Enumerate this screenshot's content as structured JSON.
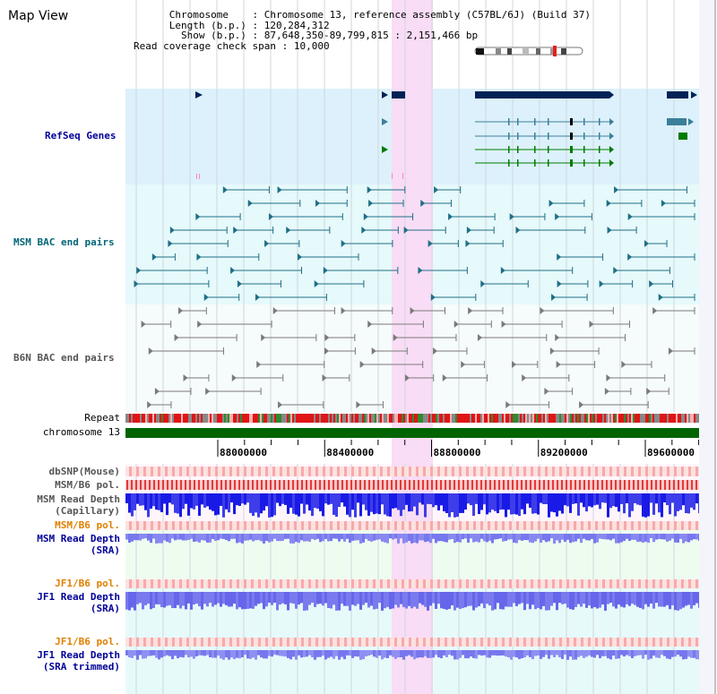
{
  "header": {
    "title": "Map View",
    "chromosome_key": "Chromosome",
    "chromosome_value": "Chromosome 13, reference assembly (C57BL/6J) (Build 37)",
    "length_key": "Length (b.p.)",
    "length_value": "120,284,312",
    "show_key": "Show (b.p.)",
    "show_value": "87,648,350-89,799,815 : 2,151,466 bp",
    "span_key": "Read coverage check span",
    "span_value": "10,000"
  },
  "tracks": {
    "refseq": "RefSeq Genes",
    "msm_bac": "MSM BAC end pairs",
    "b6n_bac": "B6N BAC end pairs",
    "repeat": "Repeat",
    "chromosome": "chromosome 13",
    "dbsnp": "dbSNP(Mouse)",
    "msm_b6_pol_1": "MSM/B6 pol.",
    "msm_read_depth_cap_1": "MSM Read Depth",
    "msm_read_depth_cap_2": "(Capillary)",
    "msm_b6_pol_2": "MSM/B6 pol.",
    "msm_read_depth_sra_1": "MSM Read Depth",
    "msm_read_depth_sra_2": "(SRA)",
    "jf1_b6_pol_1": "JF1/B6 pol.",
    "jf1_read_depth_sra_1": "JF1 Read Depth",
    "jf1_read_depth_sra_2": "(SRA)",
    "jf1_b6_pol_2": "JF1/B6 pol.",
    "jf1_read_depth_trim_1": "JF1 Read Depth",
    "jf1_read_depth_trim_2": "(SRA trimmed)"
  },
  "axis": {
    "ticks": [
      {
        "label": "88000000",
        "value": 88000000
      },
      {
        "label": "88400000",
        "value": 88400000
      },
      {
        "label": "88800000",
        "value": 88800000
      },
      {
        "label": "89200000",
        "value": 89200000
      },
      {
        "label": "89600000",
        "value": 89600000
      }
    ]
  },
  "colors": {
    "refseq_bg": "#dcf1fb",
    "msm_bg": "#e6f9fb",
    "b6n_bg": "#f6fbfb",
    "highlight": "#f9dcf5",
    "label_navy": "#000099",
    "label_teal": "#006677",
    "label_gray": "#555555",
    "label_orange": "#e08000",
    "gene_navy": "#002255",
    "gene_teal": "#3b7f9a",
    "gene_green": "#007a00",
    "chromosome_bar": "#006400",
    "depth_blue": "#1a1ae6",
    "depth_light": "#7777ee"
  }
}
